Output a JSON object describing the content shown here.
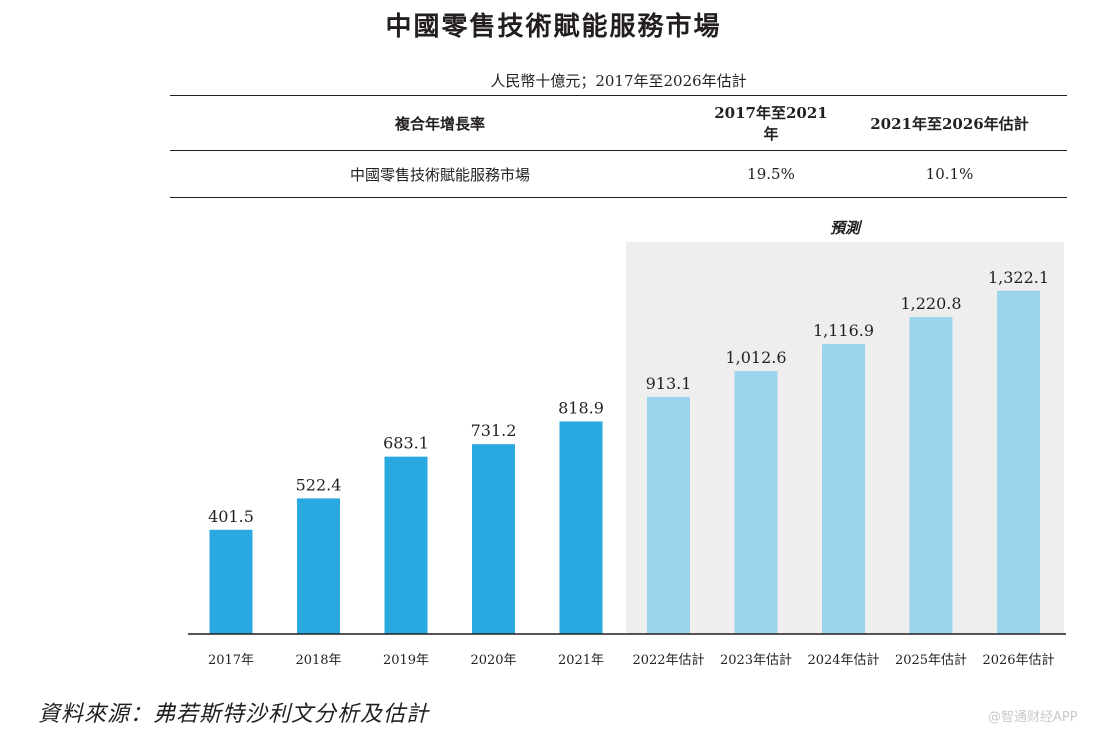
{
  "title": "中國零售技術賦能服務市場",
  "subtitle": "人民幣十億元；2017年至2026年估計",
  "cagr_table": {
    "header": [
      "複合年增長率",
      "2017年至2021年",
      "2021年至2026年估計"
    ],
    "row": [
      "中國零售技術賦能服務市場",
      "19.5%",
      "10.1%"
    ]
  },
  "forecast_label": "預測",
  "source": "資料來源：弗若斯特沙利文分析及估計",
  "watermark": "@智通财经APP",
  "colors": {
    "actual": "#29a9e0",
    "forecast": "#9cd4ed",
    "forecast_bg": "#eeeeee",
    "text": "#231f20"
  },
  "chart_data": {
    "type": "bar",
    "title": "中國零售技術賦能服務市場",
    "ylabel": "人民幣十億元",
    "xlabel": "",
    "ylim": [
      0,
      1400
    ],
    "grid": false,
    "categories": [
      "2017年",
      "2018年",
      "2019年",
      "2020年",
      "2021年",
      "2022年估計",
      "2023年估計",
      "2024年估計",
      "2025年估計",
      "2026年估計"
    ],
    "values": [
      401.5,
      522.4,
      683.1,
      731.2,
      818.9,
      913.1,
      1012.6,
      1116.9,
      1220.8,
      1322.1
    ],
    "value_labels": [
      "401.5",
      "522.4",
      "683.1",
      "731.2",
      "818.9",
      "913.1",
      "1,012.6",
      "1,116.9",
      "1,220.8",
      "1,322.1"
    ],
    "forecast": [
      false,
      false,
      false,
      false,
      false,
      true,
      true,
      true,
      true,
      true
    ]
  }
}
